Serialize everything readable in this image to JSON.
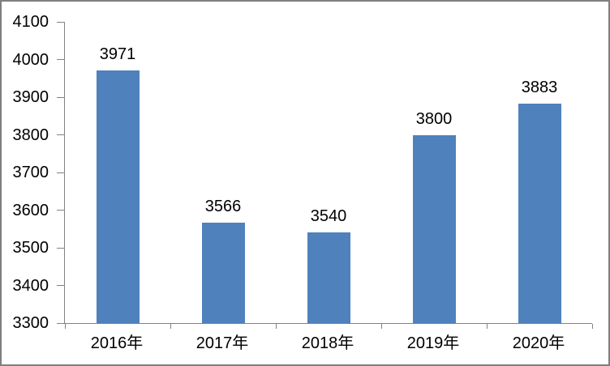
{
  "chart_data": {
    "type": "bar",
    "title": "",
    "categories": [
      "2016年",
      "2017年",
      "2018年",
      "2019年",
      "2020年"
    ],
    "values": [
      3971,
      3566,
      3540,
      3800,
      3883
    ],
    "data_labels": [
      "3971",
      "3566",
      "3540",
      "3800",
      "3883"
    ],
    "xlabel": "",
    "ylabel": "",
    "ylim": [
      3300,
      4100
    ],
    "ytick_step": 100,
    "yticks": [
      4100,
      4000,
      3900,
      3800,
      3700,
      3600,
      3500,
      3400,
      3300
    ],
    "grid": false,
    "legend_position": "none",
    "colors": {
      "bar_fill": "#4f81bd",
      "axis_line": "#828282",
      "label_text": "#000000",
      "background": "#ffffff",
      "outer_border": "#7f7f7f"
    }
  }
}
